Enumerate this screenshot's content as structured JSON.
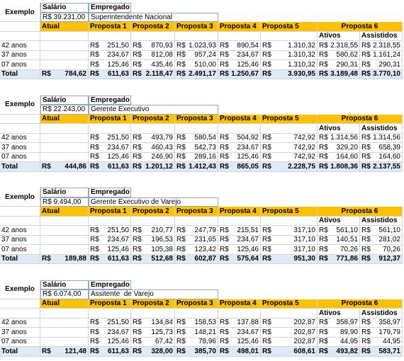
{
  "currency": "R$",
  "blocks": [
    {
      "label": "Exemplo",
      "salary_header": "Salário",
      "employee_header": "Empregado",
      "salary": "R$ 39.231,00",
      "role": "Superintendente Nacional",
      "columns": [
        "Atual",
        "Proposta 1",
        "Proposta 2",
        "Proposta 3",
        "Proposta 4",
        "Proposta 5",
        "Proposta 6"
      ],
      "subcolumns": [
        "Ativos",
        "Assistidos"
      ],
      "rows": [
        {
          "label": "42 anos",
          "values": [
            "251,50",
            "870,93",
            "1.023,93",
            "890,54",
            "1.310,32",
            "2.318,55",
            "2.318,55"
          ]
        },
        {
          "label": "37 anos",
          "values": [
            "234,67",
            "812,08",
            "957,24",
            "234,67",
            "1.310,32",
            "580,62",
            "1.161,24"
          ]
        },
        {
          "label": "07 anos",
          "values": [
            "125,46",
            "435,46",
            "510,00",
            "125,46",
            "1.310,32",
            "290,31",
            "290,31"
          ]
        },
        {
          "label": "Total",
          "values": [
            "784,62",
            "611,63",
            "2.118,47",
            "2.491,17",
            "1.250,67",
            "3.930,95",
            "3.189,48",
            "3.770,10"
          ]
        }
      ]
    },
    {
      "label": "Exemplo",
      "salary_header": "Salário",
      "employee_header": "Empregado",
      "salary": "R$ 22.243,00",
      "role": "Gerente Executivo",
      "columns": [
        "Atual",
        "Proposta 1",
        "Proposta 2",
        "Proposta 3",
        "Proposta 4",
        "Proposta 5",
        "Proposta 6"
      ],
      "subcolumns": [
        "Ativos",
        "Assistidos"
      ],
      "rows": [
        {
          "label": "42 anos",
          "values": [
            "251,50",
            "493,79",
            "580,54",
            "504,92",
            "742,92",
            "1.314,56",
            "1.314,56"
          ]
        },
        {
          "label": "37 anos",
          "values": [
            "234,67",
            "460,43",
            "542,73",
            "234,67",
            "742,92",
            "329,20",
            "658,39"
          ]
        },
        {
          "label": "07 anos",
          "values": [
            "125,46",
            "246,90",
            "289,16",
            "125,46",
            "742,92",
            "164,60",
            "164,60"
          ]
        },
        {
          "label": "Total",
          "values": [
            "444,86",
            "611,63",
            "1.201,12",
            "1.412,43",
            "865,05",
            "2.228,75",
            "1.808,36",
            "2.137,55"
          ]
        }
      ]
    },
    {
      "label": "Exemplo",
      "salary_header": "Salário",
      "employee_header": "Empregado",
      "salary": "R$ 9.494,00",
      "role": "Gerente Executivo de Varejo",
      "columns": [
        "Atual",
        "Proposta 1",
        "Proposta 2",
        "Proposta 3",
        "Proposta 4",
        "Proposta 5",
        "Proposta 6"
      ],
      "subcolumns": [
        "Ativos",
        "Assistidos"
      ],
      "rows": [
        {
          "label": "42 anos",
          "values": [
            "251,50",
            "210,77",
            "247,79",
            "215,51",
            "317,10",
            "561,10",
            "561,10"
          ]
        },
        {
          "label": "37 anos",
          "values": [
            "234,67",
            "196,53",
            "231,65",
            "234,67",
            "317,10",
            "140,51",
            "281,02"
          ]
        },
        {
          "label": "07 anos",
          "values": [
            "125,46",
            "105,38",
            "123,42",
            "125,46",
            "317,10",
            "70,26",
            "70,26"
          ]
        },
        {
          "label": "Total",
          "values": [
            "189,88",
            "611,63",
            "512,68",
            "602,87",
            "575,64",
            "951,30",
            "771,86",
            "912,37"
          ]
        }
      ]
    },
    {
      "label": "Exemplo",
      "salary_header": "Salário",
      "employee_header": "Empregado",
      "salary": "R$ 6.074,00",
      "role": "Assitente  de Varejo",
      "columns": [
        "Atual",
        "Proposta 1",
        "Proposta 2",
        "Proposta 3",
        "Proposta 4",
        "Proposta 5",
        "Proposta 6"
      ],
      "subcolumns": [
        "Ativos",
        "Assistidos"
      ],
      "rows": [
        {
          "label": "42 anos",
          "values": [
            "251,50",
            "134,84",
            "158,53",
            "137,88",
            "202,87",
            "358,97",
            "358,97"
          ]
        },
        {
          "label": "37 anos",
          "values": [
            "234,67",
            "125,73",
            "148,21",
            "234,67",
            "202,87",
            "89,90",
            "179,79"
          ]
        },
        {
          "label": "07 anos",
          "values": [
            "125,46",
            "67,42",
            "78,96",
            "125,46",
            "202,87",
            "44,95",
            "44,95"
          ]
        },
        {
          "label": "Total",
          "values": [
            "121,48",
            "611,63",
            "328,00",
            "385,70",
            "498,01",
            "608,61",
            "493,82",
            "583,71"
          ]
        }
      ]
    }
  ]
}
